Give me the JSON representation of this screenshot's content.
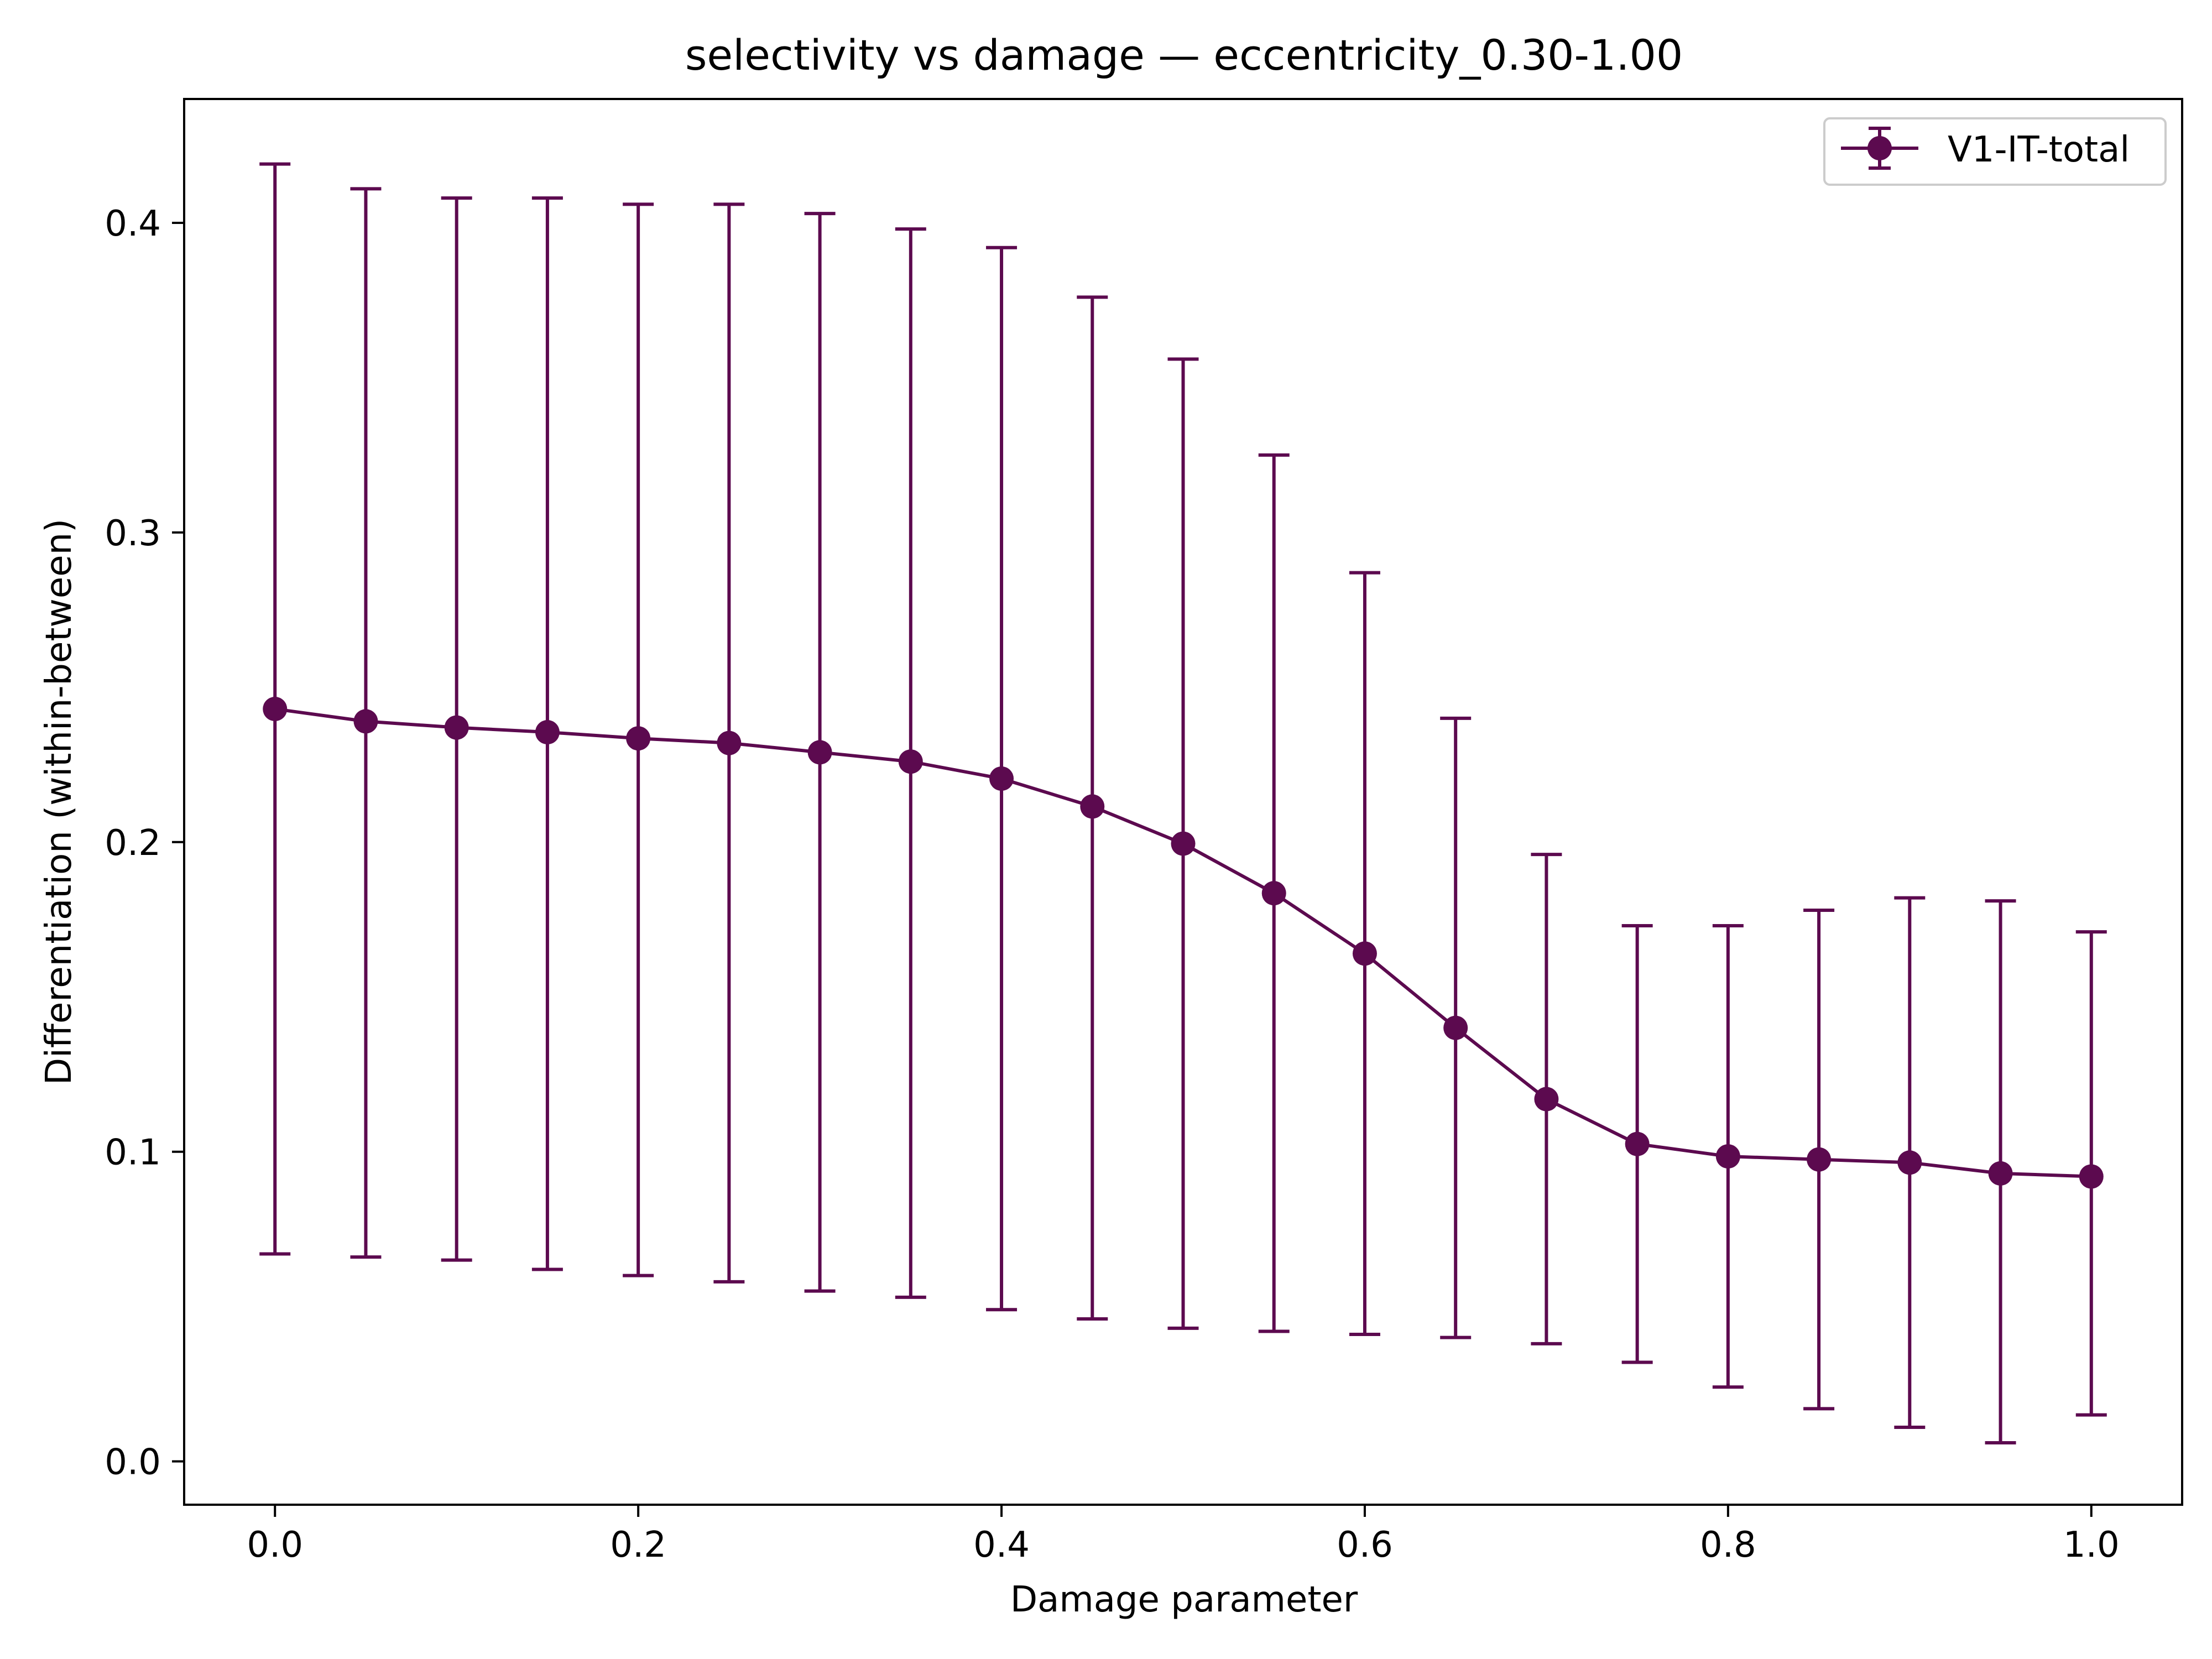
{
  "chart_data": {
    "type": "line",
    "title": "selectivity vs damage — eccentricity_0.30-1.00",
    "xlabel": "Damage parameter",
    "ylabel": "Differentiation (within-between)",
    "xlim": [
      -0.05,
      1.05
    ],
    "ylim": [
      -0.014,
      0.44
    ],
    "x_ticks": [
      0.0,
      0.2,
      0.4,
      0.6,
      0.8,
      1.0
    ],
    "x_tick_labels": [
      "0.0",
      "0.2",
      "0.4",
      "0.6",
      "0.8",
      "1.0"
    ],
    "y_ticks": [
      0.0,
      0.1,
      0.2,
      0.3,
      0.4
    ],
    "y_tick_labels": [
      "0.0",
      "0.1",
      "0.2",
      "0.3",
      "0.4"
    ],
    "grid": false,
    "legend_position": "top-right",
    "series": [
      {
        "name": "V1-IT-total",
        "color": "#5c0a4f",
        "x": [
          0.0,
          0.05,
          0.1,
          0.15,
          0.2,
          0.25,
          0.3,
          0.35,
          0.4,
          0.45,
          0.5,
          0.55,
          0.6,
          0.65,
          0.7,
          0.75,
          0.8,
          0.85,
          0.9,
          0.95,
          1.0
        ],
        "y": [
          0.243,
          0.239,
          0.237,
          0.2355,
          0.2335,
          0.232,
          0.229,
          0.226,
          0.2205,
          0.2115,
          0.1995,
          0.1835,
          0.164,
          0.14,
          0.117,
          0.1025,
          0.0985,
          0.0975,
          0.0965,
          0.093,
          0.092
        ],
        "yerr_lower": [
          0.067,
          0.066,
          0.065,
          0.062,
          0.06,
          0.058,
          0.055,
          0.053,
          0.049,
          0.046,
          0.043,
          0.042,
          0.041,
          0.04,
          0.038,
          0.032,
          0.024,
          0.017,
          0.011,
          0.006,
          0.015
        ],
        "yerr_upper": [
          0.419,
          0.411,
          0.408,
          0.408,
          0.406,
          0.406,
          0.403,
          0.398,
          0.392,
          0.376,
          0.356,
          0.325,
          0.287,
          0.24,
          0.196,
          0.173,
          0.173,
          0.178,
          0.182,
          0.181,
          0.171
        ]
      }
    ]
  }
}
